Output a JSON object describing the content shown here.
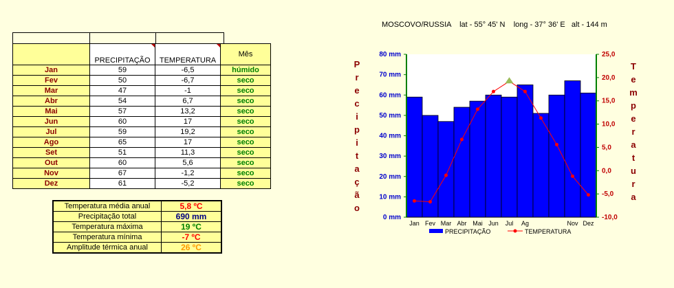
{
  "title": "MOSCOVO/RUSSIA    lat - 55° 45' N    long - 37° 36' E   alt - 144 m",
  "table": {
    "header_precip": "PRECIPITAÇÃO",
    "header_temp": "TEMPERATURA",
    "header_status": "Mês",
    "rows": [
      {
        "month": "Jan",
        "precip": "59",
        "temp": "-6,5",
        "status": "húmido"
      },
      {
        "month": "Fev",
        "precip": "50",
        "temp": "-6,7",
        "status": "seco"
      },
      {
        "month": "Mar",
        "precip": "47",
        "temp": "-1",
        "status": "seco"
      },
      {
        "month": "Abr",
        "precip": "54",
        "temp": "6,7",
        "status": "seco"
      },
      {
        "month": "Mai",
        "precip": "57",
        "temp": "13,2",
        "status": "seco"
      },
      {
        "month": "Jun",
        "precip": "60",
        "temp": "17",
        "status": "seco"
      },
      {
        "month": "Jul",
        "precip": "59",
        "temp": "19,2",
        "status": "seco"
      },
      {
        "month": "Ago",
        "precip": "65",
        "temp": "17",
        "status": "seco"
      },
      {
        "month": "Set",
        "precip": "51",
        "temp": "11,3",
        "status": "seco"
      },
      {
        "month": "Out",
        "precip": "60",
        "temp": "5,6",
        "status": "seco"
      },
      {
        "month": "Nov",
        "precip": "67",
        "temp": "-1,2",
        "status": "seco"
      },
      {
        "month": "Dez",
        "precip": "61",
        "temp": "-5,2",
        "status": "seco"
      }
    ]
  },
  "summary": [
    {
      "label": "Temperatura média anual",
      "value": "5,8 ºC",
      "color": "#ff0000"
    },
    {
      "label": "Precipitação total",
      "value": "690 mm",
      "color": "#000080"
    },
    {
      "label": "Temperatura máxima",
      "value": "19 ºC",
      "color": "#008000"
    },
    {
      "label": "Temperatura mínima",
      "value": "-7 ºC",
      "color": "#ff0000"
    },
    {
      "label": "Amplitude térmica anual",
      "value": "26 ºC",
      "color": "#ff9900"
    }
  ],
  "chart_data": {
    "type": "bar",
    "categories": [
      "Jan",
      "Fev",
      "Mar",
      "Abr",
      "Mai",
      "Jun",
      "Jul",
      "Ago",
      "Set",
      "Out",
      "Nov",
      "Dez"
    ],
    "x_tick_labels": [
      "Jan",
      "Fev",
      "Mar",
      "Abr",
      "Mai",
      "Jun",
      "Jul",
      "Ag",
      "",
      "",
      "Nov",
      "Dez"
    ],
    "series": [
      {
        "name": "PRECIPITAÇÃO",
        "type": "bar",
        "axis": "left",
        "color": "#0000ff",
        "values": [
          59,
          50,
          47,
          54,
          57,
          60,
          59,
          65,
          51,
          60,
          67,
          61
        ]
      },
      {
        "name": "TEMPERATURA",
        "type": "line",
        "axis": "right",
        "color": "#ff0000",
        "values": [
          -6.5,
          -6.7,
          -1,
          6.7,
          13.2,
          17,
          19.2,
          17,
          11.3,
          5.6,
          -1.2,
          -5.2
        ]
      }
    ],
    "left_ticks": [
      "0 mm",
      "10 mm",
      "20 mm",
      "30 mm",
      "40 mm",
      "50 mm",
      "60 mm",
      "70 mm",
      "80 mm"
    ],
    "right_ticks": [
      "-10,0",
      "-5,0",
      "0,0",
      "5,0",
      "10,0",
      "15,0",
      "20,0",
      "25,0"
    ],
    "ylim_left": [
      0,
      80
    ],
    "ylim_right": [
      -10,
      25
    ],
    "left_axis_label": "Precipitação",
    "right_axis_label": "Temperatura",
    "legend_position": "bottom",
    "highlight_point": {
      "category": "Jul",
      "color": "#9bbb59"
    }
  }
}
